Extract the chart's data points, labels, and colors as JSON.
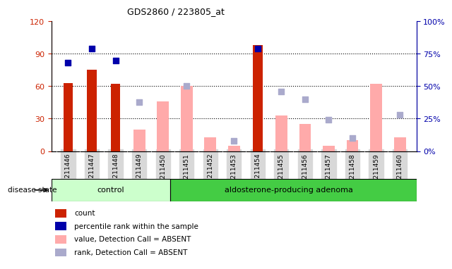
{
  "title": "GDS2860 / 223805_at",
  "samples": [
    "GSM211446",
    "GSM211447",
    "GSM211448",
    "GSM211449",
    "GSM211450",
    "GSM211451",
    "GSM211452",
    "GSM211453",
    "GSM211454",
    "GSM211455",
    "GSM211456",
    "GSM211457",
    "GSM211458",
    "GSM211459",
    "GSM211460"
  ],
  "count": [
    63,
    75,
    62,
    0,
    0,
    0,
    0,
    0,
    98,
    0,
    0,
    0,
    0,
    0,
    0
  ],
  "percentile_rank": [
    68,
    79,
    70,
    0,
    0,
    0,
    0,
    0,
    79,
    0,
    0,
    0,
    0,
    0,
    0
  ],
  "value_absent": [
    0,
    0,
    0,
    20,
    46,
    60,
    13,
    5,
    0,
    33,
    25,
    5,
    10,
    62,
    13
  ],
  "rank_absent": [
    0,
    0,
    0,
    38,
    0,
    50,
    0,
    8,
    0,
    46,
    40,
    24,
    10,
    0,
    28
  ],
  "control_count": 5,
  "ylim_left": [
    0,
    120
  ],
  "ylim_right": [
    0,
    100
  ],
  "yticks_left": [
    0,
    30,
    60,
    90,
    120
  ],
  "yticks_right": [
    0,
    25,
    50,
    75,
    100
  ],
  "ytick_labels_left": [
    "0",
    "30",
    "60",
    "90",
    "120"
  ],
  "ytick_labels_right": [
    "0%",
    "25%",
    "50%",
    "75%",
    "100%"
  ],
  "color_count": "#cc2200",
  "color_percentile": "#0000aa",
  "color_value_absent": "#ffaaaa",
  "color_rank_absent": "#aaaacc",
  "label_count": "count",
  "label_percentile": "percentile rank within the sample",
  "label_value_absent": "value, Detection Call = ABSENT",
  "label_rank_absent": "rank, Detection Call = ABSENT",
  "disease_state_label": "disease state",
  "group_control": "control",
  "group_adenoma": "aldosterone-producing adenoma",
  "group_bg_control": "#ccffcc",
  "group_bg_adenoma": "#44cc44"
}
